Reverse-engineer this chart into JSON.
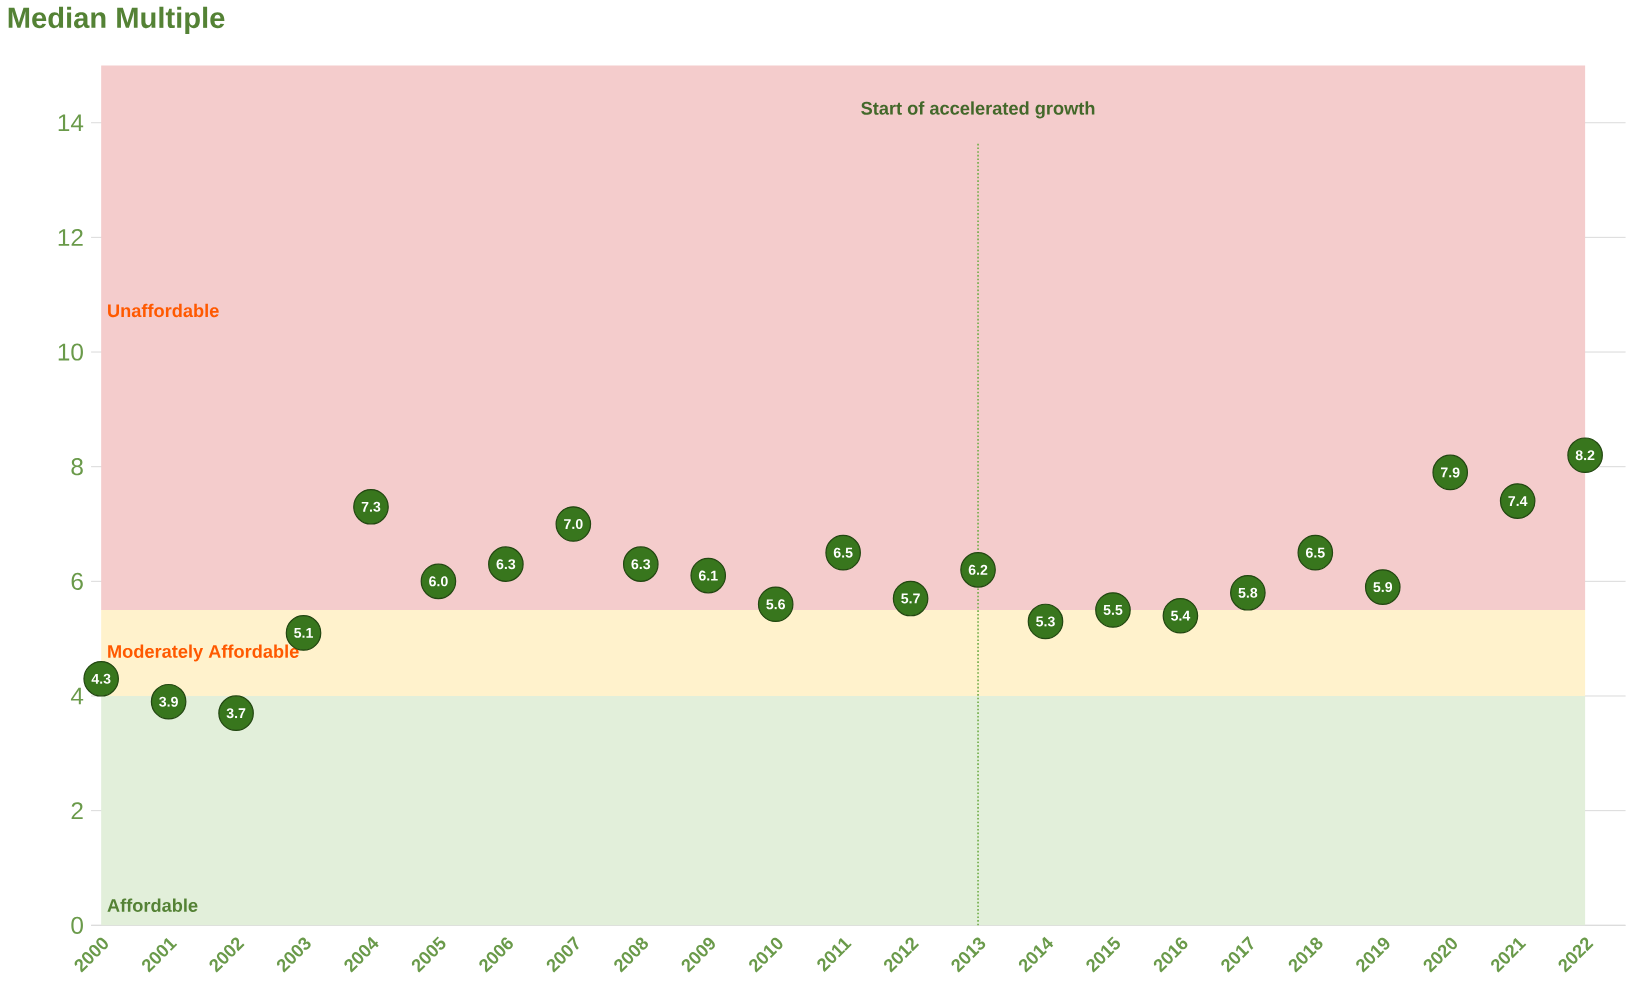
{
  "chart_data": {
    "type": "scatter",
    "title": "Median Multiple",
    "categories": [
      "2000",
      "2001",
      "2002",
      "2003",
      "2004",
      "2005",
      "2006",
      "2007",
      "2008",
      "2009",
      "2010",
      "2011",
      "2012",
      "2013",
      "2014",
      "2015",
      "2016",
      "2017",
      "2018",
      "2019",
      "2020",
      "2021",
      "2022"
    ],
    "values": [
      4.3,
      3.9,
      3.7,
      5.1,
      7.3,
      6.0,
      6.3,
      7.0,
      6.3,
      6.1,
      5.6,
      6.5,
      5.7,
      6.2,
      5.3,
      5.5,
      5.4,
      5.8,
      6.5,
      5.9,
      7.9,
      7.4,
      8.2
    ],
    "value_labels": [
      "4.3",
      "3.9",
      "3.7",
      "5.1",
      "7.3",
      "6.0",
      "6.3",
      "7.0",
      "6.3",
      "6.1",
      "5.6",
      "6.5",
      "5.7",
      "6.2",
      "5.3",
      "5.5",
      "5.4",
      "5.8",
      "6.5",
      "5.9",
      "7.9",
      "7.4",
      "8.2"
    ],
    "color": "#38761d",
    "marker": "circle",
    "ylim": [
      0,
      15
    ],
    "yticks": [
      0,
      2,
      4,
      6,
      8,
      10,
      12,
      14
    ],
    "grid": "y",
    "bands": [
      {
        "axis": "y",
        "from": 0,
        "to": 4,
        "label": "Affordable",
        "color": "#e2efda"
      },
      {
        "axis": "y",
        "from": 4,
        "to": 5.5,
        "label": "Moderately Affordable",
        "color": "#fff2cc"
      },
      {
        "axis": "y",
        "from": 5.5,
        "to": 15,
        "label": "Unaffordable",
        "color": "#f4cccc"
      }
    ],
    "ref_lines": [
      {
        "axis": "x",
        "value": "2013",
        "label": "Start of accelerated growth",
        "color": "#70ad47",
        "line_style": "dotted"
      }
    ]
  }
}
